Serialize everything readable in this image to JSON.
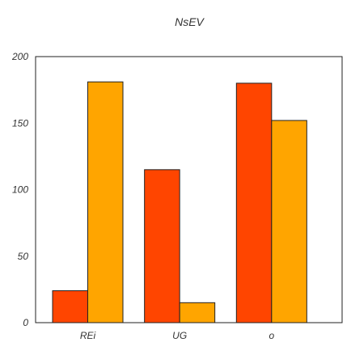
{
  "chart_data": {
    "type": "bar",
    "title": "NsEV",
    "xlabel": "",
    "ylabel": "",
    "categories": [
      "REi",
      "UG",
      "o"
    ],
    "series": [
      {
        "values": [
          24,
          115,
          180
        ],
        "color": "#ff4500"
      },
      {
        "values": [
          181,
          15,
          152
        ],
        "color": "#ffa500"
      }
    ],
    "ylim": [
      0,
      200
    ],
    "yticks": [
      0,
      50,
      100,
      150,
      200
    ],
    "grid": false,
    "legend": "none"
  }
}
